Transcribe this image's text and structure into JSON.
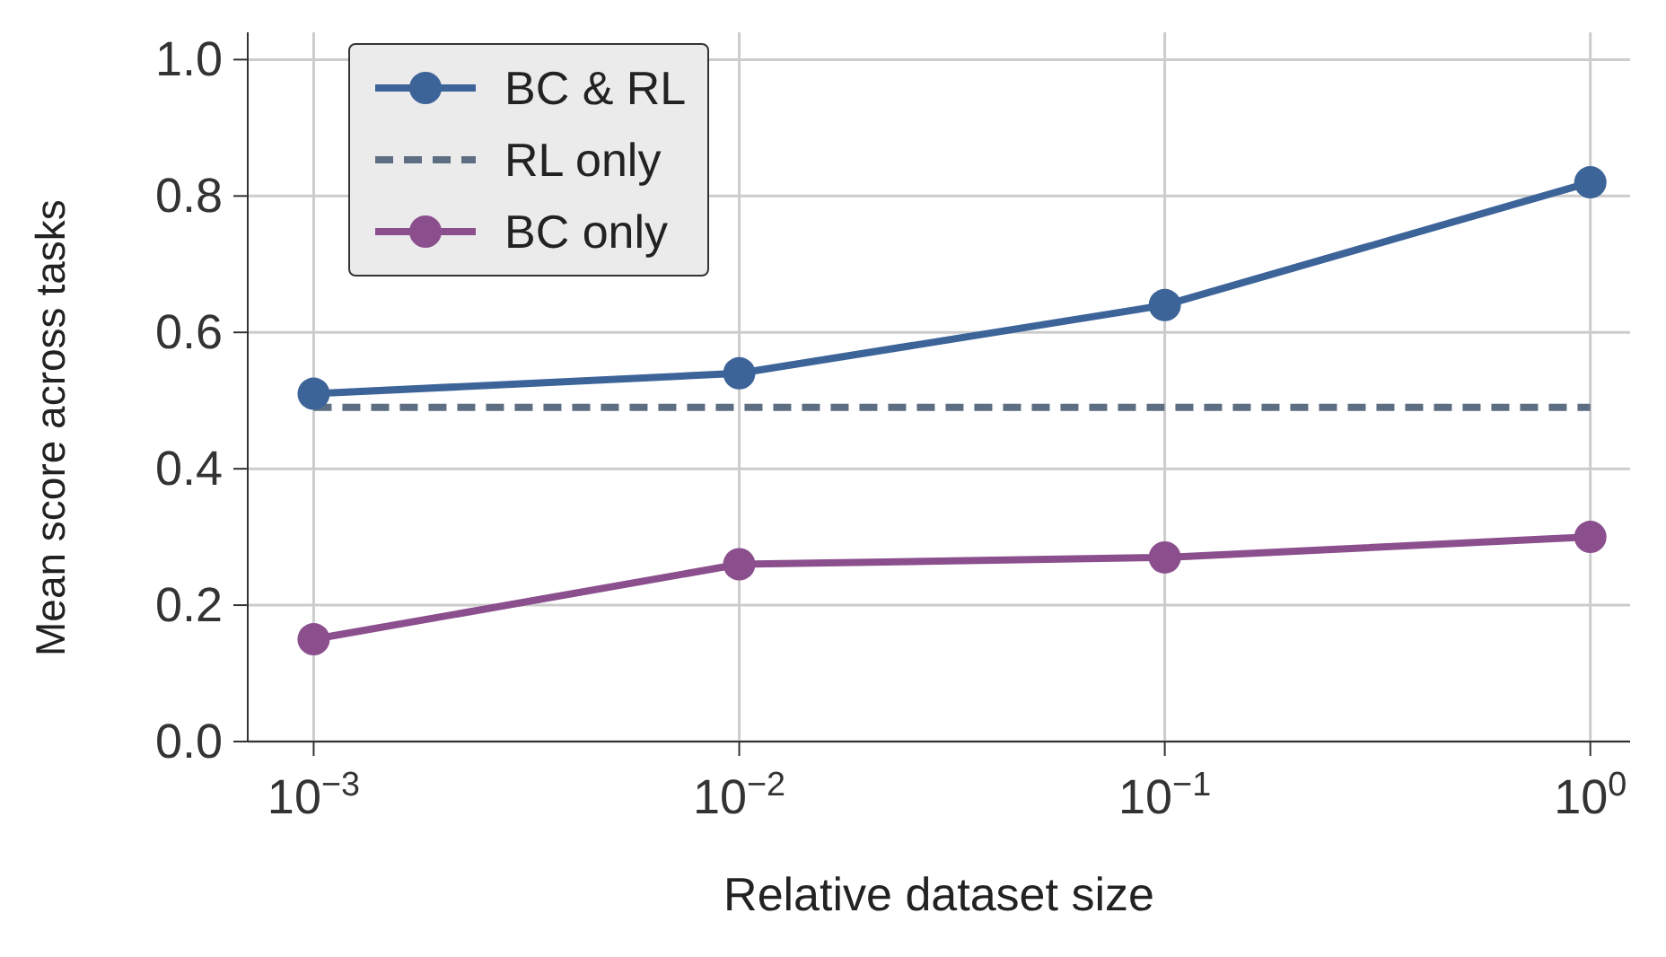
{
  "chart_data": {
    "type": "line",
    "xlabel": "Relative dataset size",
    "ylabel": "Mean score across tasks",
    "log": "x",
    "grid": true,
    "legend": "top left",
    "marker": "circle",
    "line_style": "solid",
    "xlim": [
      0.0007,
      1.24
    ],
    "xticks": [
      {
        "value": 0.001,
        "label": "10$^{−3}$"
      },
      {
        "value": 0.01,
        "label": "10$^{−2}$"
      },
      {
        "value": 0.1,
        "label": "10$^{−1}$"
      },
      {
        "value": 1,
        "label": "10$^{0}$"
      }
    ],
    "ylim": [
      0,
      1.04
    ],
    "yticks": [
      {
        "value": 0,
        "label": "0.0"
      },
      0.2,
      0.4,
      0.6,
      0.8,
      {
        "value": 1,
        "label": "1.0"
      }
    ],
    "series": [
      {
        "name": "BC & RL",
        "color": "#3d6499",
        "x": [
          0.001,
          0.01,
          0.1,
          1
        ],
        "values": [
          0.51,
          0.54,
          0.64,
          0.82
        ]
      },
      {
        "name": "RL only",
        "color": "#5d6e82",
        "type": "line",
        "x": [
          0.001,
          1
        ],
        "values": [
          0.49,
          0.49
        ],
        "marker": "none",
        "line_style": "dashed"
      },
      {
        "name": "BC only",
        "color": "#8b4f8e",
        "x": [
          0.001,
          0.01,
          0.1,
          1
        ],
        "values": [
          0.15,
          0.26,
          0.27,
          0.3
        ]
      }
    ]
  }
}
